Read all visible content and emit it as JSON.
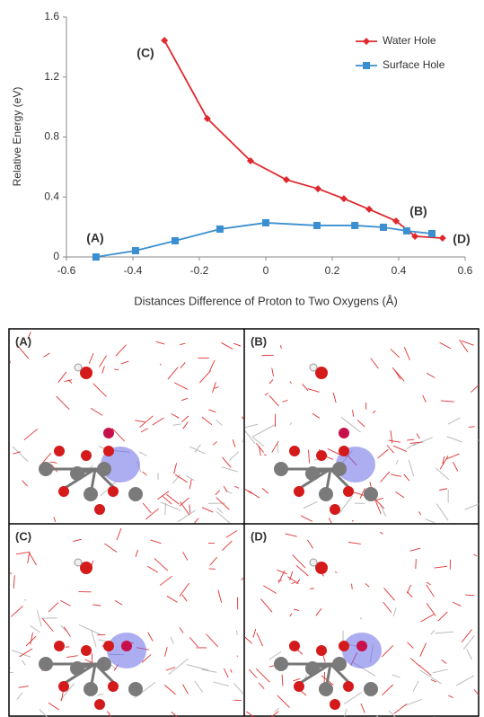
{
  "chart_data": {
    "type": "line",
    "xlabel": "Distances Difference of Proton to Two Oxygens (Å)",
    "ylabel": "Relative Energy (eV)",
    "xlim": [
      -0.6,
      0.6
    ],
    "xticks": [
      -0.6,
      -0.4,
      -0.2,
      0,
      0.2,
      0.4,
      0.6
    ],
    "ylim": [
      0,
      1.6
    ],
    "yticks": [
      0,
      0.4,
      0.8,
      1.2,
      1.6
    ],
    "grid": false,
    "legend": "upper right",
    "series": [
      {
        "name": "Water Hole",
        "color": "#e0282e",
        "marker": "diamond",
        "x": [
          -0.305,
          -0.176,
          -0.046,
          0.062,
          0.157,
          0.235,
          0.311,
          0.392,
          0.449,
          0.532
        ],
        "values": [
          1.444,
          0.923,
          0.641,
          0.515,
          0.455,
          0.389,
          0.318,
          0.24,
          0.138,
          0.126
        ]
      },
      {
        "name": "Surface Hole",
        "color": "#3a8fd0",
        "marker": "square",
        "x": [
          -0.511,
          -0.392,
          -0.273,
          -0.138,
          0.0,
          0.154,
          0.268,
          0.354,
          0.424,
          0.5
        ],
        "values": [
          0,
          0.042,
          0.108,
          0.186,
          0.228,
          0.21,
          0.21,
          0.198,
          0.174,
          0.156
        ]
      }
    ],
    "annotations": [
      {
        "text": "(A)",
        "color": "#3a8fd0"
      },
      {
        "text": "(B)",
        "color": "#3a8fd0"
      },
      {
        "text": "(C)",
        "color": "#e0282e"
      },
      {
        "text": "(D)",
        "color": "#e0282e"
      }
    ]
  },
  "panels": [
    {
      "label": "(A)"
    },
    {
      "label": "(B)"
    },
    {
      "label": "(C)"
    },
    {
      "label": "(D)"
    }
  ]
}
